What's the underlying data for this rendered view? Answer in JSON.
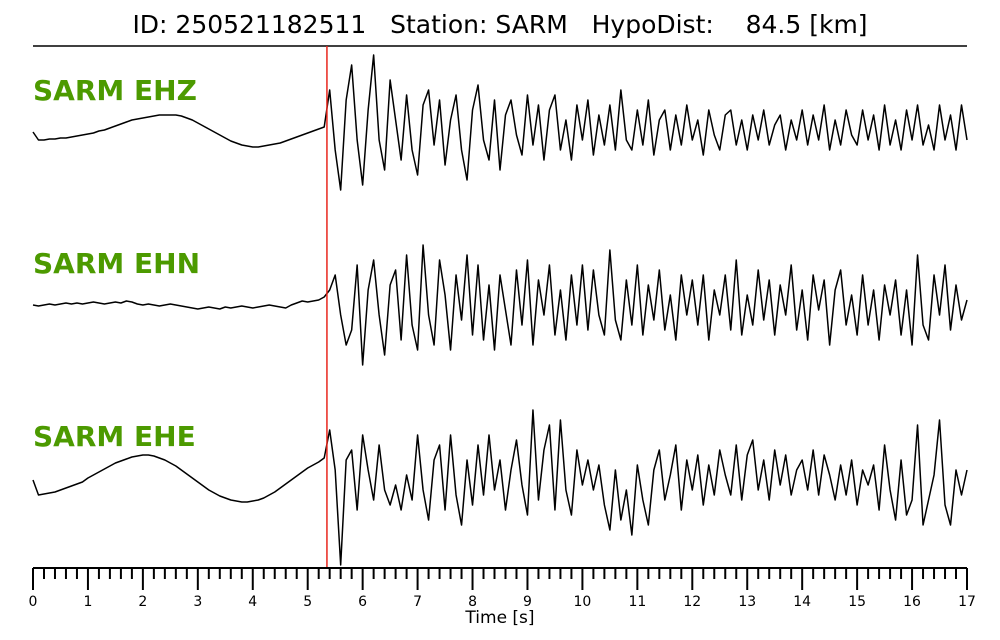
{
  "chart_data": {
    "type": "seismogram",
    "title": "ID: 250521182511   Station: SARM   HypoDist:    84.5 [km]",
    "xlabel": "Time [s]",
    "xlim": [
      0,
      17
    ],
    "xticks": [
      0,
      1,
      2,
      3,
      4,
      5,
      6,
      7,
      8,
      9,
      10,
      11,
      12,
      13,
      14,
      15,
      16,
      17
    ],
    "xminorticks": [
      0.2,
      0.4,
      0.6,
      0.8,
      1.2,
      1.4,
      1.6,
      1.8,
      2.2,
      2.4,
      2.6,
      2.8,
      3.2,
      3.4,
      3.6,
      3.8,
      4.2,
      4.4,
      4.6,
      4.8,
      5.2,
      5.4,
      5.6,
      5.8,
      6.2,
      6.4,
      6.6,
      6.8,
      7.2,
      7.4,
      7.6,
      7.8,
      8.2,
      8.4,
      8.6,
      8.8,
      9.2,
      9.4,
      9.6,
      9.8,
      10.2,
      10.4,
      10.6,
      10.8,
      11.2,
      11.4,
      11.6,
      11.8,
      12.2,
      12.4,
      12.6,
      12.8,
      13.2,
      13.4,
      13.6,
      13.8,
      14.2,
      14.4,
      14.6,
      14.8,
      15.2,
      15.4,
      15.6,
      15.8,
      16.2,
      16.4,
      16.6,
      16.8
    ],
    "pick": 5.35,
    "pick_color": "#e8261c",
    "x": [
      0,
      0.1,
      0.2,
      0.3,
      0.4,
      0.5,
      0.6,
      0.7,
      0.8,
      0.9,
      1,
      1.1,
      1.2,
      1.3,
      1.4,
      1.5,
      1.6,
      1.7,
      1.8,
      1.9,
      2,
      2.1,
      2.2,
      2.3,
      2.4,
      2.5,
      2.6,
      2.7,
      2.8,
      2.9,
      3,
      3.1,
      3.2,
      3.3,
      3.4,
      3.5,
      3.6,
      3.7,
      3.8,
      3.9,
      4,
      4.1,
      4.2,
      4.3,
      4.4,
      4.5,
      4.6,
      4.7,
      4.8,
      4.9,
      5,
      5.1,
      5.2,
      5.3,
      5.4,
      5.5,
      5.6,
      5.7,
      5.8,
      5.9,
      6,
      6.1,
      6.2,
      6.3,
      6.4,
      6.5,
      6.6,
      6.7,
      6.8,
      6.9,
      7,
      7.1,
      7.2,
      7.3,
      7.4,
      7.5,
      7.6,
      7.7,
      7.8,
      7.9,
      8,
      8.1,
      8.2,
      8.3,
      8.4,
      8.5,
      8.6,
      8.7,
      8.8,
      8.9,
      9,
      9.1,
      9.2,
      9.3,
      9.4,
      9.5,
      9.6,
      9.7,
      9.8,
      9.9,
      10,
      10.1,
      10.2,
      10.3,
      10.4,
      10.5,
      10.6,
      10.7,
      10.8,
      10.9,
      11,
      11.1,
      11.2,
      11.3,
      11.4,
      11.5,
      11.6,
      11.7,
      11.8,
      11.9,
      12,
      12.1,
      12.2,
      12.3,
      12.4,
      12.5,
      12.6,
      12.7,
      12.8,
      12.9,
      13,
      13.1,
      13.2,
      13.3,
      13.4,
      13.5,
      13.6,
      13.7,
      13.8,
      13.9,
      14,
      14.1,
      14.2,
      14.3,
      14.4,
      14.5,
      14.6,
      14.7,
      14.8,
      14.9,
      15,
      15.1,
      15.2,
      15.3,
      15.4,
      15.5,
      15.6,
      15.7,
      15.8,
      15.9,
      16,
      16.1,
      16.2,
      16.3,
      16.4,
      16.5,
      16.6,
      16.7,
      16.8,
      16.9,
      17
    ],
    "series": [
      {
        "name": "SARM EHZ",
        "color": "#000000",
        "values": [
          -2,
          -10,
          -10,
          -9,
          -9,
          -8,
          -8,
          -7,
          -6,
          -5,
          -4,
          -3,
          -1,
          0,
          2,
          4,
          6,
          8,
          10,
          11,
          12,
          13,
          14,
          15,
          15,
          15,
          15,
          14,
          12,
          10,
          7,
          4,
          1,
          -2,
          -5,
          -8,
          -11,
          -13,
          -15,
          -16,
          -17,
          -17,
          -16,
          -15,
          -14,
          -13,
          -11,
          -9,
          -7,
          -5,
          -3,
          -1,
          1,
          3,
          40,
          -20,
          -60,
          30,
          65,
          -10,
          -55,
          20,
          75,
          -10,
          -40,
          50,
          10,
          -30,
          35,
          -20,
          -45,
          25,
          40,
          -15,
          30,
          -35,
          10,
          35,
          -20,
          -50,
          20,
          45,
          -10,
          -30,
          30,
          -40,
          15,
          30,
          -5,
          -25,
          35,
          -15,
          25,
          -30,
          20,
          35,
          -20,
          10,
          -30,
          25,
          -10,
          30,
          -25,
          15,
          -15,
          25,
          -20,
          40,
          -10,
          -20,
          20,
          -15,
          30,
          -25,
          10,
          20,
          -20,
          15,
          -15,
          25,
          -10,
          10,
          -25,
          20,
          -5,
          -20,
          15,
          20,
          -15,
          10,
          -20,
          15,
          -10,
          20,
          -15,
          5,
          15,
          -20,
          10,
          -10,
          20,
          -15,
          15,
          -10,
          25,
          -20,
          10,
          -15,
          20,
          -5,
          -15,
          20,
          -10,
          15,
          -20,
          25,
          -15,
          10,
          -20,
          20,
          -10,
          25,
          -15,
          5,
          -20,
          25,
          -10,
          15,
          -20,
          25,
          -10
        ]
      },
      {
        "name": "SARM EHN",
        "color": "#000000",
        "values": [
          0,
          -1,
          0,
          1,
          0,
          1,
          2,
          1,
          2,
          1,
          2,
          3,
          2,
          1,
          2,
          3,
          2,
          4,
          3,
          1,
          0,
          1,
          0,
          -1,
          0,
          1,
          0,
          -1,
          -2,
          -3,
          -4,
          -3,
          -2,
          -3,
          -4,
          -2,
          -3,
          -2,
          -1,
          -2,
          -3,
          -2,
          -1,
          0,
          -1,
          -2,
          -3,
          0,
          2,
          4,
          3,
          4,
          5,
          8,
          15,
          30,
          -10,
          -40,
          -25,
          40,
          -60,
          15,
          45,
          -10,
          -50,
          20,
          35,
          -35,
          50,
          -20,
          -45,
          60,
          -10,
          -40,
          45,
          10,
          -45,
          30,
          -15,
          50,
          -30,
          40,
          -35,
          20,
          -45,
          30,
          -5,
          -40,
          35,
          -20,
          45,
          -40,
          25,
          -10,
          40,
          -30,
          15,
          -35,
          30,
          -20,
          40,
          -25,
          35,
          -10,
          -30,
          55,
          -15,
          -35,
          25,
          -20,
          40,
          -30,
          20,
          -15,
          35,
          -25,
          10,
          -35,
          30,
          -10,
          25,
          -20,
          30,
          -35,
          15,
          -10,
          30,
          -25,
          45,
          -30,
          10,
          -20,
          35,
          -15,
          25,
          -30,
          20,
          -10,
          40,
          -25,
          15,
          -35,
          30,
          -5,
          25,
          -40,
          15,
          35,
          -20,
          10,
          -30,
          30,
          -20,
          15,
          -35,
          20,
          -10,
          25,
          -30,
          15,
          -40,
          50,
          -20,
          -35,
          30,
          -10,
          40,
          -25,
          20,
          -15,
          5
        ]
      },
      {
        "name": "SARM EHE",
        "color": "#000000",
        "values": [
          0,
          -15,
          -14,
          -13,
          -12,
          -10,
          -8,
          -6,
          -4,
          -2,
          2,
          5,
          8,
          11,
          14,
          17,
          19,
          21,
          23,
          24,
          25,
          25,
          24,
          22,
          20,
          17,
          14,
          10,
          6,
          2,
          -2,
          -6,
          -10,
          -13,
          -16,
          -18,
          -20,
          -21,
          -22,
          -22,
          -21,
          -20,
          -18,
          -15,
          -12,
          -8,
          -4,
          0,
          4,
          8,
          12,
          15,
          18,
          22,
          50,
          10,
          -85,
          20,
          30,
          -30,
          45,
          10,
          -20,
          35,
          -10,
          -25,
          -5,
          -30,
          5,
          -20,
          45,
          -10,
          -40,
          20,
          35,
          -30,
          45,
          -15,
          -45,
          20,
          -25,
          35,
          -15,
          45,
          -10,
          20,
          -30,
          10,
          40,
          -5,
          -35,
          70,
          -20,
          30,
          55,
          -30,
          60,
          -10,
          -35,
          30,
          -5,
          20,
          -10,
          15,
          -25,
          -50,
          10,
          -40,
          -10,
          -55,
          15,
          -20,
          -45,
          10,
          30,
          -20,
          5,
          35,
          -30,
          20,
          -10,
          25,
          -25,
          15,
          -15,
          30,
          5,
          -15,
          35,
          -20,
          25,
          40,
          -10,
          20,
          -20,
          30,
          -5,
          25,
          -15,
          10,
          20,
          -10,
          30,
          -15,
          25,
          5,
          -20,
          15,
          -15,
          20,
          -25,
          10,
          -5,
          15,
          -30,
          35,
          -10,
          -40,
          20,
          -35,
          -20,
          55,
          -45,
          -20,
          5,
          60,
          -25,
          -45,
          10,
          -15,
          10
        ]
      }
    ]
  }
}
